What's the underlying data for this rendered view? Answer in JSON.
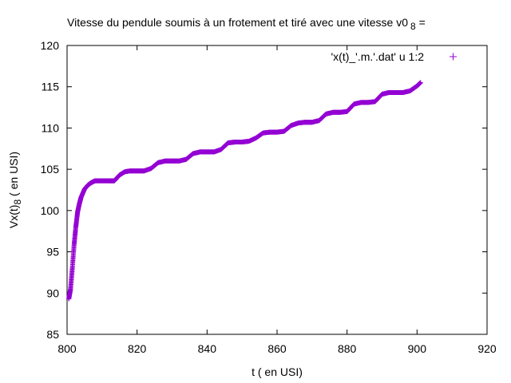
{
  "chart_data": {
    "type": "scatter",
    "title": "Vitesse du pendule soumis à un frotement et tiré avec une vitesse v0",
    "title_sub": "8",
    "title_suffix": " =",
    "xlabel": "t ( en USI)",
    "ylabel_main": "Vx(t)",
    "ylabel_sub": "8",
    "ylabel_suffix": "  ( en USI)",
    "xlim": [
      800,
      920
    ],
    "ylim": [
      85,
      120
    ],
    "xticks": [
      800,
      820,
      840,
      860,
      880,
      900,
      920
    ],
    "yticks": [
      85,
      90,
      95,
      100,
      105,
      110,
      115,
      120
    ],
    "grid": false,
    "legend_position": "top-right",
    "series": [
      {
        "name": "'x(t)_'.m.'.dat' u 1:2",
        "color": "#9400d3",
        "marker": "plus",
        "x": [
          800.5,
          801,
          801.5,
          802,
          802.5,
          803,
          803.5,
          804,
          805,
          806,
          807,
          808,
          810,
          812,
          813.5,
          815,
          816.5,
          818,
          820,
          822,
          824,
          826,
          828,
          830,
          832,
          834,
          836,
          838,
          840,
          842,
          844,
          846,
          848,
          850,
          852,
          854,
          856,
          858,
          860,
          862,
          864,
          866,
          868,
          870,
          872,
          874,
          876,
          878,
          880,
          882,
          884,
          886,
          888,
          890,
          892,
          894,
          896,
          898,
          900,
          901
        ],
        "y": [
          89.3,
          90.5,
          93.0,
          95.8,
          98.0,
          99.8,
          100.8,
          101.6,
          102.6,
          103.1,
          103.4,
          103.6,
          103.6,
          103.6,
          103.6,
          104.3,
          104.7,
          104.8,
          104.8,
          104.8,
          105.1,
          105.8,
          106.0,
          106.0,
          106.0,
          106.2,
          106.9,
          107.1,
          107.1,
          107.1,
          107.4,
          108.2,
          108.3,
          108.3,
          108.4,
          108.8,
          109.4,
          109.5,
          109.5,
          109.6,
          110.3,
          110.6,
          110.7,
          110.7,
          110.9,
          111.7,
          111.9,
          111.9,
          112.0,
          112.9,
          113.1,
          113.1,
          113.2,
          114.1,
          114.3,
          114.3,
          114.3,
          114.5,
          115.1,
          115.5
        ]
      }
    ]
  }
}
